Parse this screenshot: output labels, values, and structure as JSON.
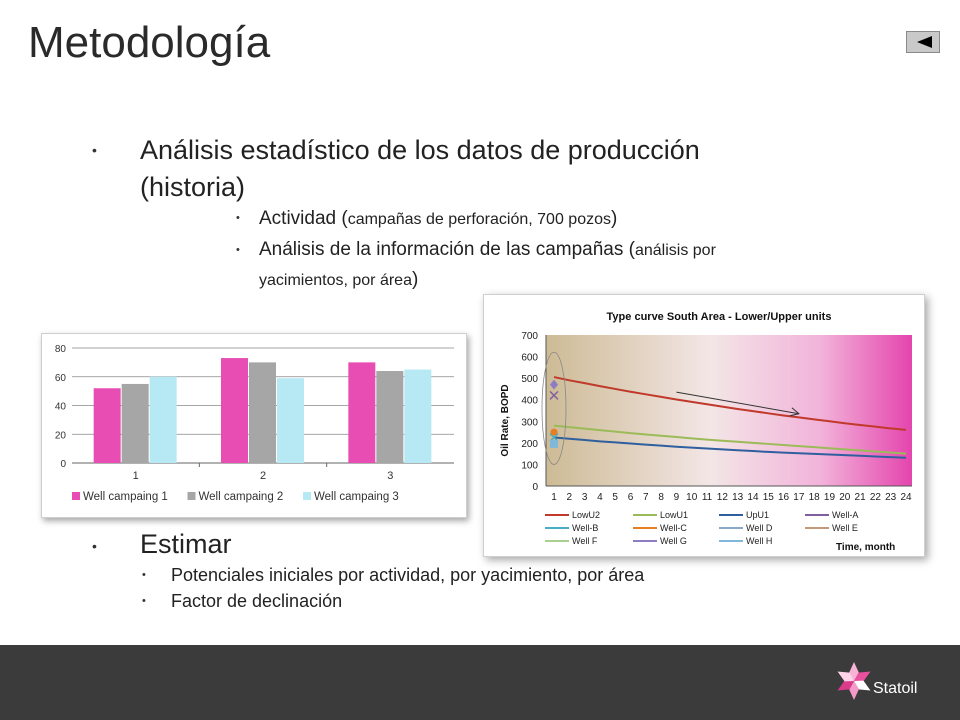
{
  "slide": {
    "title": "Metodología",
    "bullet1": {
      "line1": "Análisis estadístico de los datos de producción",
      "line2": "(historia)"
    },
    "sub1": {
      "a_main": "Actividad (",
      "a_small": "campañas de perforación, 700 pozos",
      "a_end": ")",
      "b_main": "Análisis de la información de las campañas (",
      "b_small": "análisis por",
      "b_line2": "yacimientos, por área",
      "b_end": ")"
    },
    "bullet2": "Estimar",
    "sub2": [
      "Potenciales iniciales por actividad, por yacimiento, por área",
      "Factor de declinación"
    ],
    "logo": "Statoil",
    "bullet_glyph": "•"
  },
  "colors": {
    "pink": "#e84db3",
    "gray": "#a6a6a6",
    "cyan": "#b6e9f3",
    "footer": "#3b3b3b",
    "lowu2": "#c0392b",
    "lowu1": "#9bbb59",
    "upu1": "#2f5f9e"
  },
  "chart_data": [
    {
      "type": "bar",
      "categories": [
        "1",
        "2",
        "3"
      ],
      "ylim": [
        0,
        80
      ],
      "yticks": [
        0,
        20,
        40,
        60,
        80
      ],
      "series": [
        {
          "name": "Well campaing 1",
          "values": [
            52,
            73,
            70
          ],
          "color": "#e84db3"
        },
        {
          "name": "Well campaing 2",
          "values": [
            55,
            70,
            64
          ],
          "color": "#a6a6a6"
        },
        {
          "name": "Well campaing 3",
          "values": [
            60,
            59,
            65
          ],
          "color": "#b6e9f3"
        }
      ],
      "legend": "bottom"
    },
    {
      "type": "line",
      "title": "Type curve  South Area - Lower/Upper units",
      "ylabel": "Oil Rate, BOPD",
      "xlabel": "Time, month",
      "x": [
        1,
        2,
        3,
        4,
        5,
        6,
        7,
        8,
        9,
        10,
        11,
        12,
        13,
        14,
        15,
        16,
        17,
        18,
        19,
        20,
        21,
        22,
        23,
        24
      ],
      "ylim": [
        0,
        700
      ],
      "yticks": [
        0,
        100,
        200,
        300,
        400,
        500,
        600,
        700
      ],
      "series": [
        {
          "name": "LowU2",
          "color": "#c0392b",
          "values": [
            505,
            490,
            477,
            463,
            450,
            437,
            425,
            413,
            401,
            390,
            379,
            368,
            357,
            347,
            337,
            327,
            318,
            309,
            300,
            291,
            283,
            275,
            267,
            260
          ]
        },
        {
          "name": "LowU1",
          "color": "#9bbb59",
          "values": [
            280,
            273,
            266,
            259,
            252,
            245,
            239,
            233,
            227,
            221,
            215,
            210,
            205,
            200,
            195,
            190,
            185,
            180,
            175,
            170,
            165,
            160,
            155,
            150
          ]
        },
        {
          "name": "UpU1",
          "color": "#2f5f9e",
          "values": [
            225,
            219,
            213,
            207,
            202,
            197,
            192,
            187,
            182,
            178,
            174,
            170,
            166,
            162,
            158,
            155,
            152,
            149,
            146,
            143,
            140,
            137,
            134,
            131
          ]
        }
      ],
      "points": [
        {
          "name": "Well-A",
          "x": 1,
          "y": 420,
          "color": "#7f5fa0",
          "marker": "x"
        },
        {
          "name": "Well-B",
          "x": 1,
          "y": 225,
          "color": "#4bacc6",
          "marker": "x"
        },
        {
          "name": "Well-C",
          "x": 1,
          "y": 250,
          "color": "#e67e22",
          "marker": "circle"
        },
        {
          "name": "Well G",
          "x": 1,
          "y": 470,
          "color": "#8e7cc3",
          "marker": "diamond"
        },
        {
          "name": "Well H",
          "x": 1,
          "y": 195,
          "color": "#7fb8d8",
          "marker": "square"
        }
      ],
      "legend_entries": [
        {
          "name": "LowU2",
          "color": "#c0392b"
        },
        {
          "name": "LowU1",
          "color": "#9bbb59"
        },
        {
          "name": "UpU1",
          "color": "#2f5f9e"
        },
        {
          "name": "Well-A",
          "color": "#7f5fa0"
        },
        {
          "name": "Well-B",
          "color": "#4bacc6"
        },
        {
          "name": "Well-C",
          "color": "#e67e22"
        },
        {
          "name": "Well D",
          "color": "#8aa9c8"
        },
        {
          "name": "Well E",
          "color": "#c49a7a"
        },
        {
          "name": "Well F",
          "color": "#a9d08e"
        },
        {
          "name": "Well G",
          "color": "#8e7cc3"
        },
        {
          "name": "Well H",
          "color": "#7fb8d8"
        }
      ]
    }
  ]
}
